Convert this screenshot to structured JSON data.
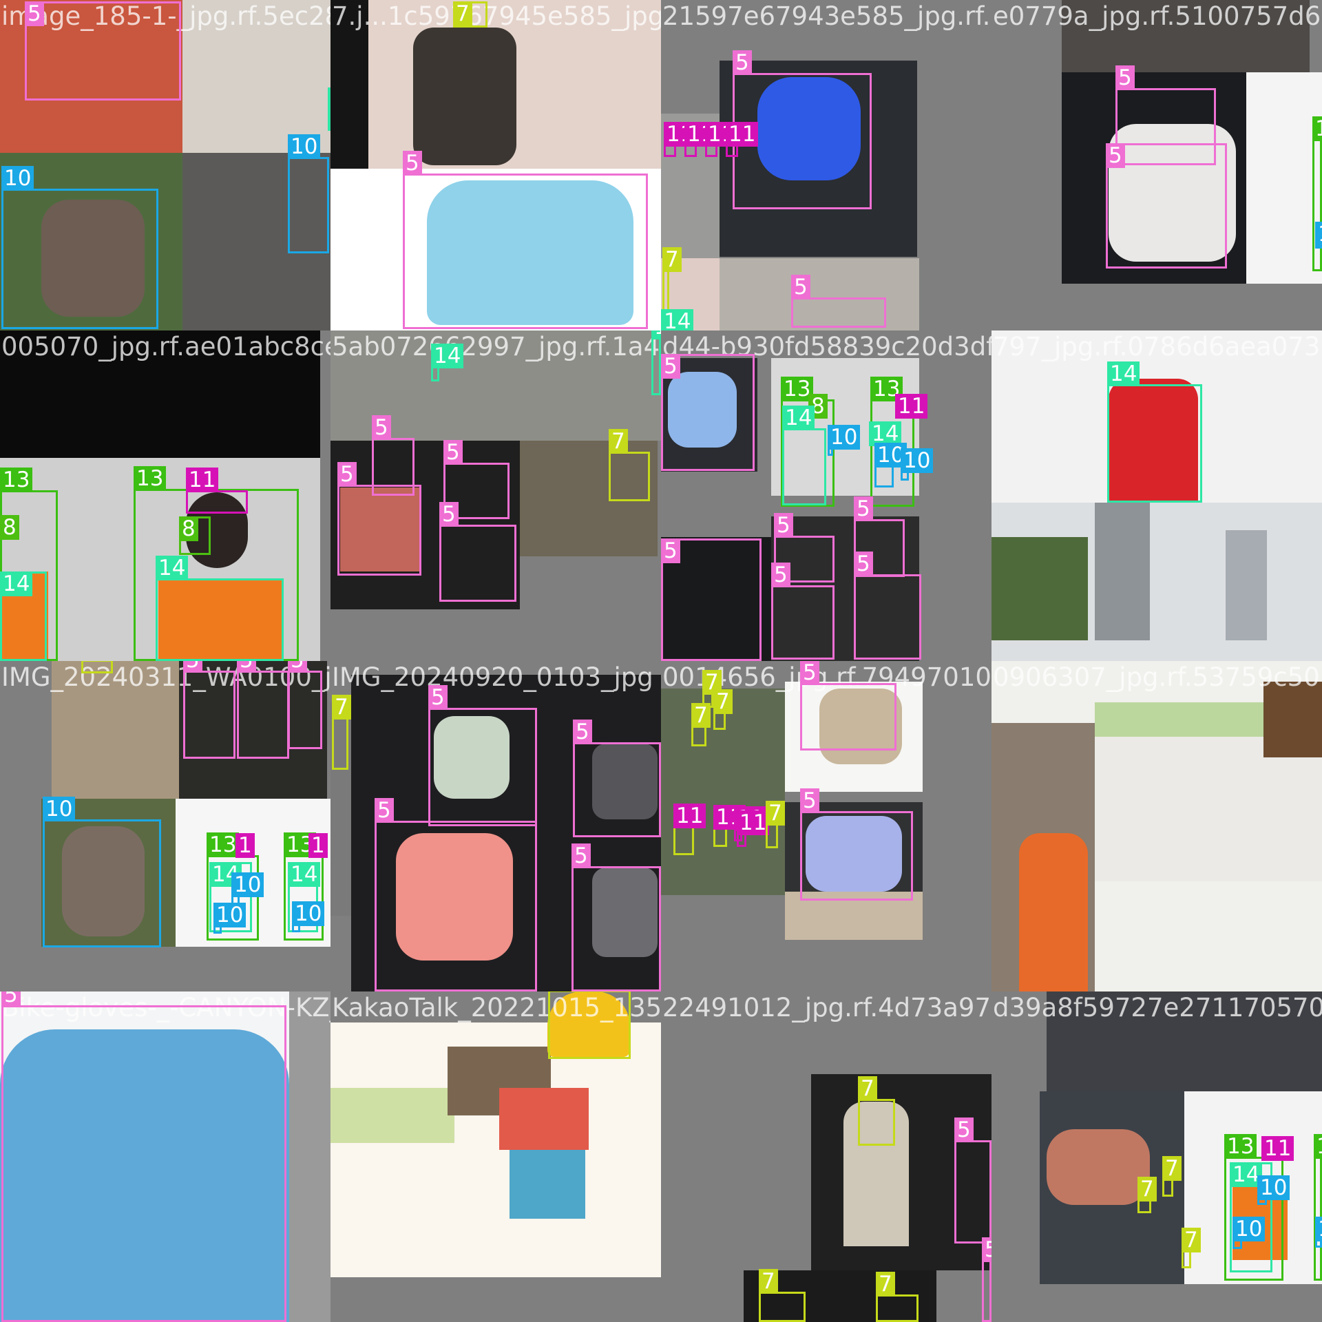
{
  "mosaic": {
    "class_colors": {
      "5": "#ef6fd3",
      "7": "#c5da1a",
      "8": "#4cbf11",
      "10": "#1aa8e6",
      "11": "#d612b6",
      "13": "#3bbf12",
      "14": "#2de7a5"
    },
    "tiles": [
      {
        "name": "image_185-1-_jpg.rf.5ec2890706e82ba56f4f09751f2",
        "boxes": [
          {
            "cls": "5"
          },
          {
            "cls": "10"
          },
          {
            "cls": "10"
          },
          {
            "cls": "1"
          }
        ]
      },
      {
        "name": "7.j...1c59767945e585_jpg.rf.a2ea",
        "boxes": [
          {
            "cls": "7"
          },
          {
            "cls": "5"
          }
        ]
      },
      {
        "name": "21597e67943e585_jpg.rf.a2eae07f9a94dd5",
        "boxes": [
          {
            "cls": "5"
          },
          {
            "cls": "11"
          },
          {
            "cls": "11"
          },
          {
            "cls": "11"
          },
          {
            "cls": "11"
          },
          {
            "cls": "7"
          },
          {
            "cls": "5"
          },
          {
            "cls": "14"
          }
        ]
      },
      {
        "name": "e0779a_jpg.rf.5100757d637c2",
        "boxes": [
          {
            "cls": "5"
          },
          {
            "cls": "5"
          },
          {
            "cls": "13"
          },
          {
            "cls": "10"
          }
        ]
      },
      {
        "name": "005070_jpg.rf.ae01abc8ce8b5ab072662997_jpg.rf.1a4d1",
        "boxes": [
          {
            "cls": "13"
          },
          {
            "cls": "8"
          },
          {
            "cls": "14"
          },
          {
            "cls": "13"
          },
          {
            "cls": "11"
          },
          {
            "cls": "8"
          },
          {
            "cls": "14"
          }
        ]
      },
      {
        "name": "5ab072662997_jpg.rf.1a4d19d4",
        "boxes": [
          {
            "cls": "14"
          },
          {
            "cls": "5"
          },
          {
            "cls": "5"
          },
          {
            "cls": "5"
          },
          {
            "cls": "5"
          },
          {
            "cls": "7"
          },
          {
            "cls": "14"
          }
        ]
      },
      {
        "name": "d44-b930fd58839c20d3dfb4",
        "boxes": [
          {
            "cls": "5"
          },
          {
            "cls": "13"
          },
          {
            "cls": "8"
          },
          {
            "cls": "14"
          },
          {
            "cls": "10"
          },
          {
            "cls": "13"
          },
          {
            "cls": "11"
          },
          {
            "cls": "14"
          },
          {
            "cls": "10"
          },
          {
            "cls": "10"
          },
          {
            "cls": "5"
          },
          {
            "cls": "5"
          },
          {
            "cls": "5"
          },
          {
            "cls": "5"
          },
          {
            "cls": "5"
          }
        ]
      },
      {
        "name": "797_jpg.rf.0786d6aea0736aa",
        "boxes": [
          {
            "cls": "14"
          }
        ]
      },
      {
        "name": "IMG_20240311_WA0100_jpg",
        "boxes": [
          {
            "cls": "7"
          },
          {
            "cls": "5"
          },
          {
            "cls": "5"
          },
          {
            "cls": "5"
          },
          {
            "cls": "10"
          },
          {
            "cls": "13"
          },
          {
            "cls": "1"
          },
          {
            "cls": "14"
          },
          {
            "cls": "10"
          },
          {
            "cls": "10"
          },
          {
            "cls": "13"
          },
          {
            "cls": "1"
          },
          {
            "cls": "14"
          },
          {
            "cls": "10"
          }
        ]
      },
      {
        "name": "IMG_20240920_0103_jpg",
        "boxes": [
          {
            "cls": "7"
          },
          {
            "cls": "5"
          },
          {
            "cls": "5"
          },
          {
            "cls": "5"
          },
          {
            "cls": "5"
          }
        ]
      },
      {
        "name": "0014656_jpg.rf.7949701014269063970",
        "boxes": [
          {
            "cls": "7"
          },
          {
            "cls": "7"
          },
          {
            "cls": "7"
          },
          {
            "cls": "11"
          },
          {
            "cls": "11"
          },
          {
            "cls": "11"
          },
          {
            "cls": "11"
          },
          {
            "cls": "7"
          },
          {
            "cls": "5"
          },
          {
            "cls": "5"
          }
        ]
      },
      {
        "name": "0906307_jpg.rf.53759c501b35",
        "boxes": []
      },
      {
        "name": "Bike-gloves-_-CANYON-KZ_jpg.rf",
        "boxes": [
          {
            "cls": "5"
          }
        ]
      },
      {
        "name": "KakaoTalk_20221015_13502",
        "boxes": [
          {
            "cls": "7"
          }
        ]
      },
      {
        "name": "22491012_jpg.rf.4d73a97c6f4703",
        "boxes": [
          {
            "cls": "7"
          },
          {
            "cls": "5"
          },
          {
            "cls": "5"
          },
          {
            "cls": "7"
          },
          {
            "cls": "7"
          }
        ]
      },
      {
        "name": "d39a8f59727e2711705707d",
        "boxes": [
          {
            "cls": "13"
          },
          {
            "cls": "11"
          },
          {
            "cls": "14"
          },
          {
            "cls": "10"
          },
          {
            "cls": "10"
          },
          {
            "cls": "7"
          },
          {
            "cls": "7"
          },
          {
            "cls": "7"
          },
          {
            "cls": "13"
          },
          {
            "cls": "10"
          }
        ]
      }
    ]
  }
}
